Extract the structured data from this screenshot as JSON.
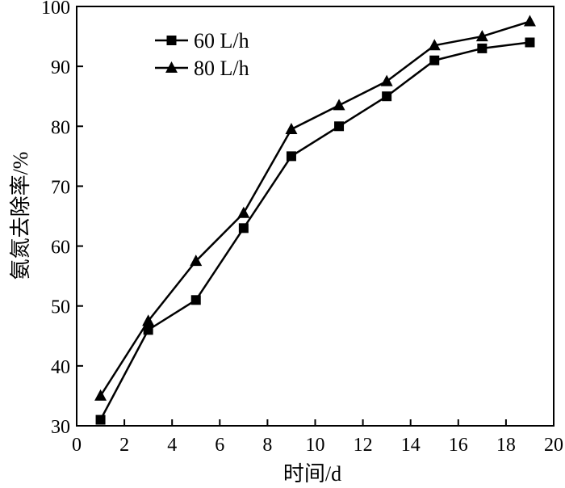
{
  "chart_data": {
    "type": "line",
    "title": "",
    "xlabel": "时间/d",
    "ylabel": "氨氮去除率/%",
    "xlim": [
      0,
      20
    ],
    "ylim": [
      30,
      100
    ],
    "x_ticks": [
      0,
      2,
      4,
      6,
      8,
      10,
      12,
      14,
      16,
      18,
      20
    ],
    "y_ticks": [
      30,
      40,
      50,
      60,
      70,
      80,
      90,
      100
    ],
    "grid": false,
    "legend_position": "top-left",
    "x": [
      1,
      3,
      5,
      7,
      9,
      11,
      13,
      15,
      17,
      19
    ],
    "series": [
      {
        "name": "60 L/h",
        "marker": "square",
        "color": "#000000",
        "values": [
          31,
          46,
          51,
          63,
          75,
          80,
          85,
          91,
          93,
          94
        ]
      },
      {
        "name": "80 L/h",
        "marker": "triangle",
        "color": "#000000",
        "values": [
          35,
          47.5,
          57.5,
          65.5,
          79.5,
          83.5,
          87.5,
          93.5,
          95,
          97.5
        ]
      }
    ]
  }
}
